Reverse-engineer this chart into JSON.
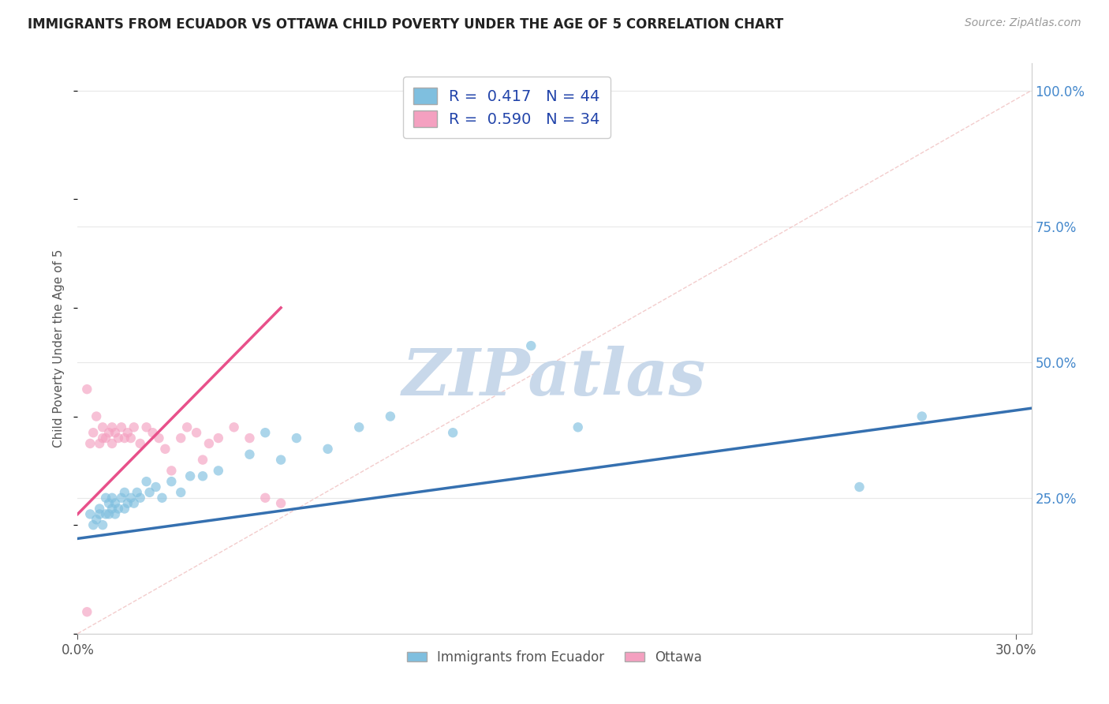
{
  "title": "IMMIGRANTS FROM ECUADOR VS OTTAWA CHILD POVERTY UNDER THE AGE OF 5 CORRELATION CHART",
  "source_text": "Source: ZipAtlas.com",
  "ylabel": "Child Poverty Under the Age of 5",
  "xlim": [
    0.0,
    0.305
  ],
  "ylim": [
    0.0,
    1.05
  ],
  "xtick_positions": [
    0.0,
    0.3
  ],
  "xticklabels": [
    "0.0%",
    "30.0%"
  ],
  "yticks_right": [
    0.25,
    0.5,
    0.75,
    1.0
  ],
  "yticklabels_right": [
    "25.0%",
    "50.0%",
    "75.0%",
    "100.0%"
  ],
  "blue_color": "#7fbfdf",
  "pink_color": "#f4a0c0",
  "blue_line_color": "#3570b0",
  "pink_line_color": "#e8508a",
  "watermark_color": "#c8d8ea",
  "grid_color": "#e8e8e8",
  "ref_line_color": "#f0c0c0",
  "blue_scatter_x": [
    0.004,
    0.005,
    0.006,
    0.007,
    0.007,
    0.008,
    0.009,
    0.009,
    0.01,
    0.01,
    0.011,
    0.011,
    0.012,
    0.012,
    0.013,
    0.014,
    0.015,
    0.015,
    0.016,
    0.017,
    0.018,
    0.019,
    0.02,
    0.022,
    0.023,
    0.025,
    0.027,
    0.03,
    0.033,
    0.036,
    0.04,
    0.045,
    0.055,
    0.06,
    0.065,
    0.07,
    0.08,
    0.09,
    0.1,
    0.12,
    0.145,
    0.16,
    0.25,
    0.27
  ],
  "blue_scatter_y": [
    0.22,
    0.2,
    0.21,
    0.23,
    0.22,
    0.2,
    0.22,
    0.25,
    0.22,
    0.24,
    0.23,
    0.25,
    0.22,
    0.24,
    0.23,
    0.25,
    0.23,
    0.26,
    0.24,
    0.25,
    0.24,
    0.26,
    0.25,
    0.28,
    0.26,
    0.27,
    0.25,
    0.28,
    0.26,
    0.29,
    0.29,
    0.3,
    0.33,
    0.37,
    0.32,
    0.36,
    0.34,
    0.38,
    0.4,
    0.37,
    0.53,
    0.38,
    0.27,
    0.4
  ],
  "pink_scatter_x": [
    0.003,
    0.004,
    0.005,
    0.006,
    0.007,
    0.008,
    0.008,
    0.009,
    0.01,
    0.011,
    0.011,
    0.012,
    0.013,
    0.014,
    0.015,
    0.016,
    0.017,
    0.018,
    0.02,
    0.022,
    0.024,
    0.026,
    0.028,
    0.03,
    0.033,
    0.035,
    0.038,
    0.04,
    0.042,
    0.045,
    0.05,
    0.055,
    0.06,
    0.065
  ],
  "pink_scatter_y": [
    0.45,
    0.35,
    0.37,
    0.4,
    0.35,
    0.36,
    0.38,
    0.36,
    0.37,
    0.35,
    0.38,
    0.37,
    0.36,
    0.38,
    0.36,
    0.37,
    0.36,
    0.38,
    0.35,
    0.38,
    0.37,
    0.36,
    0.34,
    0.3,
    0.36,
    0.38,
    0.37,
    0.32,
    0.35,
    0.36,
    0.38,
    0.36,
    0.25,
    0.24
  ],
  "pink_extra_x": [
    0.003
  ],
  "pink_extra_y": [
    0.04
  ],
  "blue_trend_x": [
    0.0,
    0.305
  ],
  "blue_trend_y": [
    0.175,
    0.415
  ],
  "pink_trend_x": [
    0.0,
    0.065
  ],
  "pink_trend_y": [
    0.22,
    0.6
  ],
  "ref_line_x": [
    0.0,
    0.305
  ],
  "ref_line_y": [
    0.0,
    1.0
  ]
}
